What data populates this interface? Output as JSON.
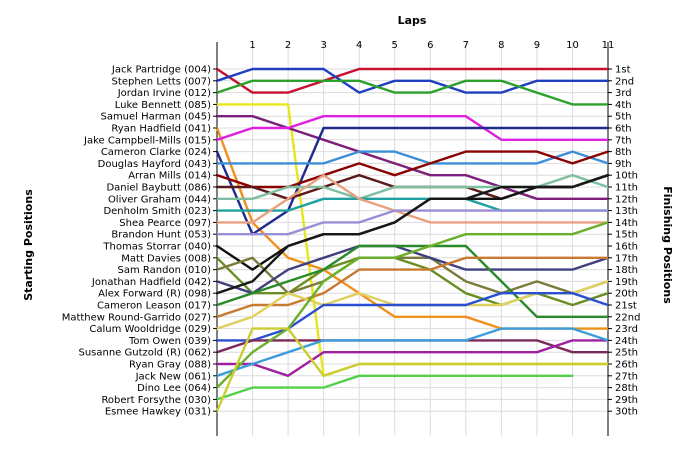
{
  "chart_data": {
    "type": "line",
    "title": "",
    "xlabel": "Laps",
    "ylabel_left": "Starting Positions",
    "ylabel_right": "Finishing Positions",
    "laps": [
      0,
      1,
      2,
      3,
      4,
      5,
      6,
      7,
      8,
      9,
      10,
      11
    ],
    "x_ticks": [
      "1",
      "2",
      "3",
      "4",
      "5",
      "6",
      "7",
      "8",
      "9",
      "10",
      "11"
    ],
    "y_range": [
      1,
      30
    ],
    "grid": true,
    "drivers": [
      "Jack Partridge (004)",
      "Stephen Letts (007)",
      "Jordan Irvine (012)",
      "Luke Bennett (085)",
      "Samuel Harman (045)",
      "Ryan Hadfield (041)",
      "Jake Campbell-Mills (015)",
      "Cameron Clarke (024)",
      "Douglas Hayford (043)",
      "Arran Mills (014)",
      "Daniel Baybutt (086)",
      "Oliver Graham (044)",
      "Denholm Smith (023)",
      "Shea Pearce (097)",
      "Brandon Hunt (053)",
      "Thomas Storrar (040)",
      "Matt Davies (008)",
      "Sam Randon (010)",
      "Jonathan Hadfield (042)",
      "Alex Forward  (R) (098)",
      "Cameron Leason (017)",
      "Matthew Round-Garrido (027)",
      "Calum Wooldridge (029)",
      "Tom Owen (039)",
      "Susanne Gutzold (R) (062)",
      "Ryan Gray (088)",
      "Jack New (061)",
      "Dino Lee (064)",
      "Robert Forsythe (030)",
      "Esmee Hawkey (031)"
    ],
    "finishing_positions": [
      "1st",
      "2nd",
      "3rd",
      "4th",
      "5th",
      "6th",
      "7th",
      "8th",
      "9th",
      "10th",
      "11th",
      "12th",
      "13th",
      "14th",
      "15th",
      "16th",
      "17th",
      "18th",
      "19th",
      "20th",
      "21st",
      "22nd",
      "23rd",
      "24th",
      "25th",
      "26th",
      "27th",
      "28th",
      "29th",
      "30th"
    ],
    "series": [
      {
        "color": "#c8102e",
        "positions": [
          1,
          3,
          3,
          2,
          1,
          1,
          1,
          1,
          1,
          1,
          1,
          1
        ]
      },
      {
        "color": "#1f3fbf",
        "positions": [
          2,
          1,
          1,
          1,
          3,
          2,
          2,
          3,
          3,
          2,
          2,
          2
        ]
      },
      {
        "color": "#2ca02c",
        "positions": [
          3,
          2,
          2,
          2,
          2,
          3,
          3,
          2,
          2,
          3,
          4,
          4
        ]
      },
      {
        "color": "#e6e61a",
        "positions": [
          4,
          4,
          4,
          27,
          26,
          26,
          26,
          26,
          26,
          26,
          26,
          26
        ]
      },
      {
        "color": "#7b1f7b",
        "positions": [
          5,
          5,
          6,
          7,
          8,
          9,
          10,
          10,
          11,
          12,
          12,
          12
        ]
      },
      {
        "color": "#f0901c",
        "positions": [
          6,
          14,
          17,
          18,
          20,
          22,
          22,
          22,
          23,
          23,
          23,
          23
        ]
      },
      {
        "color": "#e020e0",
        "positions": [
          7,
          6,
          6,
          5,
          5,
          5,
          5,
          5,
          7,
          7,
          7,
          7
        ]
      },
      {
        "color": "#1e2a8c",
        "positions": [
          8,
          15,
          13,
          6,
          6,
          6,
          6,
          6,
          6,
          6,
          6,
          6
        ]
      },
      {
        "color": "#3c8fd6",
        "positions": [
          9,
          9,
          9,
          9,
          8,
          8,
          9,
          9,
          9,
          9,
          8,
          9
        ]
      },
      {
        "color": "#8b0000",
        "positions": [
          10,
          11,
          11,
          10,
          9,
          10,
          9,
          8,
          8,
          8,
          9,
          8
        ]
      },
      {
        "color": "#5a1a1a",
        "positions": [
          11,
          11,
          12,
          11,
          10,
          11,
          11,
          11,
          12,
          11,
          11,
          10
        ]
      },
      {
        "color": "#7fbfa0",
        "positions": [
          12,
          12,
          11,
          11,
          12,
          11,
          11,
          11,
          11,
          11,
          10,
          11
        ]
      },
      {
        "color": "#20a0a0",
        "positions": [
          13,
          13,
          13,
          12,
          12,
          12,
          12,
          12,
          13,
          13,
          13,
          13
        ]
      },
      {
        "color": "#e8a080",
        "positions": [
          14,
          14,
          12,
          10,
          12,
          13,
          14,
          14,
          14,
          14,
          14,
          14
        ]
      },
      {
        "color": "#9a8fd6",
        "positions": [
          15,
          15,
          15,
          14,
          14,
          13,
          13,
          13,
          13,
          13,
          13,
          13
        ]
      },
      {
        "color": "#111111",
        "positions": [
          16,
          18,
          16,
          15,
          15,
          14,
          12,
          12,
          12,
          11,
          11,
          10
        ]
      },
      {
        "color": "#6b8e23",
        "positions": [
          17,
          20,
          20,
          18,
          17,
          17,
          18,
          20,
          21,
          20,
          21,
          20
        ]
      },
      {
        "color": "#7a7a3a",
        "positions": [
          18,
          17,
          20,
          19,
          17,
          17,
          17,
          19,
          20,
          19,
          20,
          19
        ]
      },
      {
        "color": "#404080",
        "positions": [
          19,
          20,
          18,
          17,
          16,
          16,
          17,
          18,
          18,
          18,
          18,
          17
        ]
      },
      {
        "color": "#181818",
        "positions": [
          20,
          19,
          16,
          15,
          15,
          14,
          12,
          12,
          11,
          11,
          11,
          10
        ]
      },
      {
        "color": "#2a8a2a",
        "positions": [
          21,
          20,
          19,
          18,
          16,
          16,
          16,
          16,
          19,
          22,
          22,
          22
        ]
      },
      {
        "color": "#c87a30",
        "positions": [
          22,
          21,
          21,
          20,
          18,
          18,
          18,
          17,
          17,
          17,
          17,
          17
        ]
      },
      {
        "color": "#e0d060",
        "positions": [
          23,
          22,
          20,
          21,
          20,
          21,
          21,
          21,
          21,
          20,
          20,
          19
        ]
      },
      {
        "color": "#2a4fd0",
        "positions": [
          24,
          24,
          23,
          21,
          21,
          21,
          21,
          21,
          20,
          20,
          20,
          21
        ]
      },
      {
        "color": "#7a2a5a",
        "positions": [
          25,
          24,
          24,
          24,
          24,
          24,
          24,
          24,
          24,
          24,
          25,
          25
        ]
      },
      {
        "color": "#a020a0",
        "positions": [
          26,
          26,
          27,
          25,
          25,
          25,
          25,
          25,
          25,
          25,
          24,
          24
        ]
      },
      {
        "color": "#3b9cde",
        "positions": [
          27,
          26,
          25,
          24,
          24,
          24,
          24,
          24,
          23,
          23,
          23,
          24
        ]
      },
      {
        "color": "#6ab02a",
        "positions": [
          28,
          25,
          23,
          19,
          17,
          17,
          16,
          15,
          15,
          15,
          15,
          14
        ]
      },
      {
        "color": "#55d04a",
        "positions": [
          29,
          28,
          28,
          28,
          27,
          27,
          27,
          27,
          27,
          27,
          27,
          null
        ]
      },
      {
        "color": "#cccc33",
        "positions": [
          30,
          23,
          23,
          27,
          26,
          26,
          26,
          26,
          26,
          26,
          26,
          26
        ]
      }
    ]
  }
}
